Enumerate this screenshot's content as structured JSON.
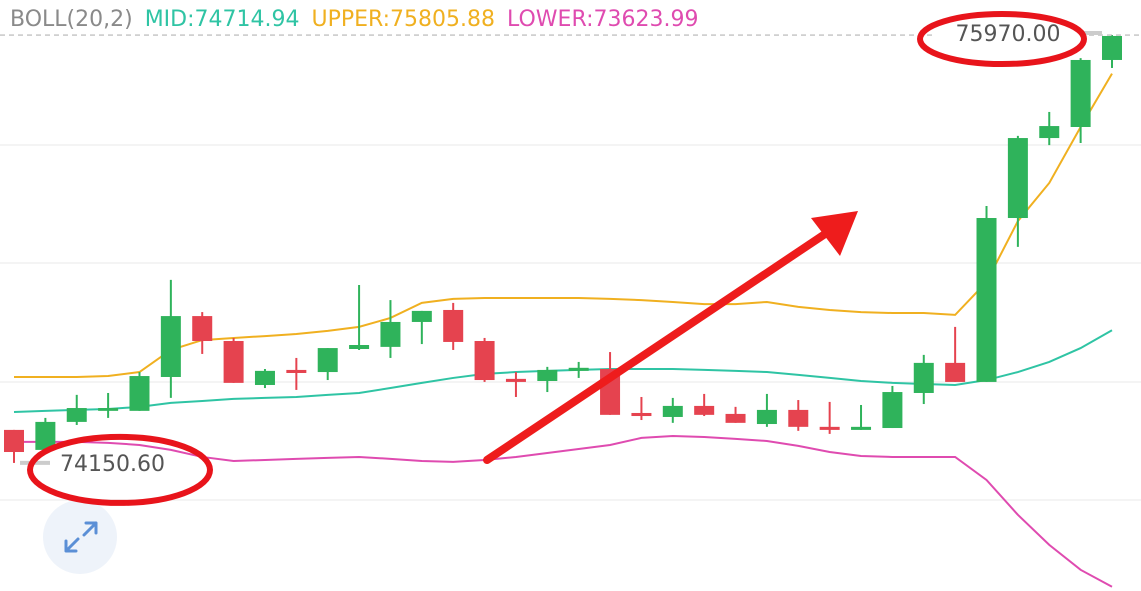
{
  "chart_data": {
    "type": "candlestick",
    "legend_title": "BOLL(20,2)",
    "up_color": "#2fb35b",
    "down_color": "#e5434f",
    "open": [
      74291,
      74206,
      74325,
      74372,
      74372,
      74516,
      74775,
      74669,
      74482,
      74546,
      74537,
      74635,
      74644,
      74750,
      74801,
      74669,
      74508,
      74499,
      74542,
      74550,
      74363,
      74346,
      74393,
      74359,
      74316,
      74376,
      74304,
      74291,
      74299,
      74448,
      74576,
      74495,
      75192,
      75532,
      75579,
      75864
    ],
    "high": [
      74291,
      74342,
      74440,
      74448,
      74537,
      74929,
      74792,
      74682,
      74550,
      74597,
      74639,
      74907,
      74843,
      74797,
      74831,
      74682,
      74537,
      74559,
      74580,
      74622,
      74431,
      74427,
      74444,
      74389,
      74444,
      74418,
      74410,
      74397,
      74478,
      74610,
      74729,
      75243,
      75541,
      75643,
      75872,
      75970
    ],
    "low": [
      74150.6,
      74197,
      74312,
      74342,
      74372,
      74427,
      74614,
      74491,
      74469,
      74461,
      74503,
      74631,
      74597,
      74656,
      74631,
      74495,
      74431,
      74452,
      74512,
      74355,
      74333,
      74321,
      74350,
      74321,
      74304,
      74287,
      74274,
      74291,
      74299,
      74401,
      74495,
      74495,
      75069,
      75502,
      75511,
      75830
    ],
    "close": [
      74197,
      74325,
      74384,
      74384,
      74520,
      74775,
      74669,
      74491,
      74542,
      74533,
      74639,
      74652,
      74750,
      74797,
      74665,
      74503,
      74495,
      74546,
      74555,
      74355,
      74350,
      74393,
      74355,
      74321,
      74376,
      74304,
      74291,
      74304,
      74452,
      74576,
      74495,
      75192,
      75532,
      75583,
      75864,
      75966
    ],
    "series": [
      {
        "name": "MID:74714.94",
        "color": "#2fc4a4",
        "values": [
          74367,
          74372,
          74376,
          74380,
          74389,
          74406,
          74414,
          74423,
          74427,
          74431,
          74440,
          74448,
          74469,
          74491,
          74512,
          74529,
          74537,
          74542,
          74546,
          74550,
          74550,
          74550,
          74546,
          74542,
          74537,
          74525,
          74512,
          74499,
          74491,
          74486,
          74482,
          74503,
          74537,
          74580,
          74639,
          74714.94
        ]
      },
      {
        "name": "UPPER:75805.88",
        "color": "#f0b020",
        "values": [
          74516,
          74516,
          74516,
          74520,
          74537,
          74631,
          74673,
          74682,
          74690,
          74699,
          74712,
          74729,
          74767,
          74831,
          74848,
          74852,
          74852,
          74852,
          74852,
          74848,
          74843,
          74835,
          74826,
          74826,
          74835,
          74814,
          74801,
          74792,
          74788,
          74788,
          74780,
          74920,
          75179,
          75341,
          75579,
          75805.88
        ]
      },
      {
        "name": "LOWER:73623.99",
        "color": "#df4bb0",
        "values": [
          74240,
          74240,
          74240,
          74236,
          74227,
          74206,
          74176,
          74159,
          74163,
          74168,
          74172,
          74176,
          74168,
          74159,
          74155,
          74163,
          74176,
          74193,
          74210,
          74227,
          74257,
          74265,
          74261,
          74253,
          74244,
          74223,
          74197,
          74180,
          74176,
          74176,
          74176,
          74078,
          73930,
          73802,
          73696,
          73623.99
        ]
      }
    ],
    "max_label": {
      "value": 75970,
      "label": "75970.00"
    },
    "min_label": {
      "value": 74150.6,
      "label": "74150.60"
    },
    "ylim": [
      73606,
      76119
    ]
  }
}
